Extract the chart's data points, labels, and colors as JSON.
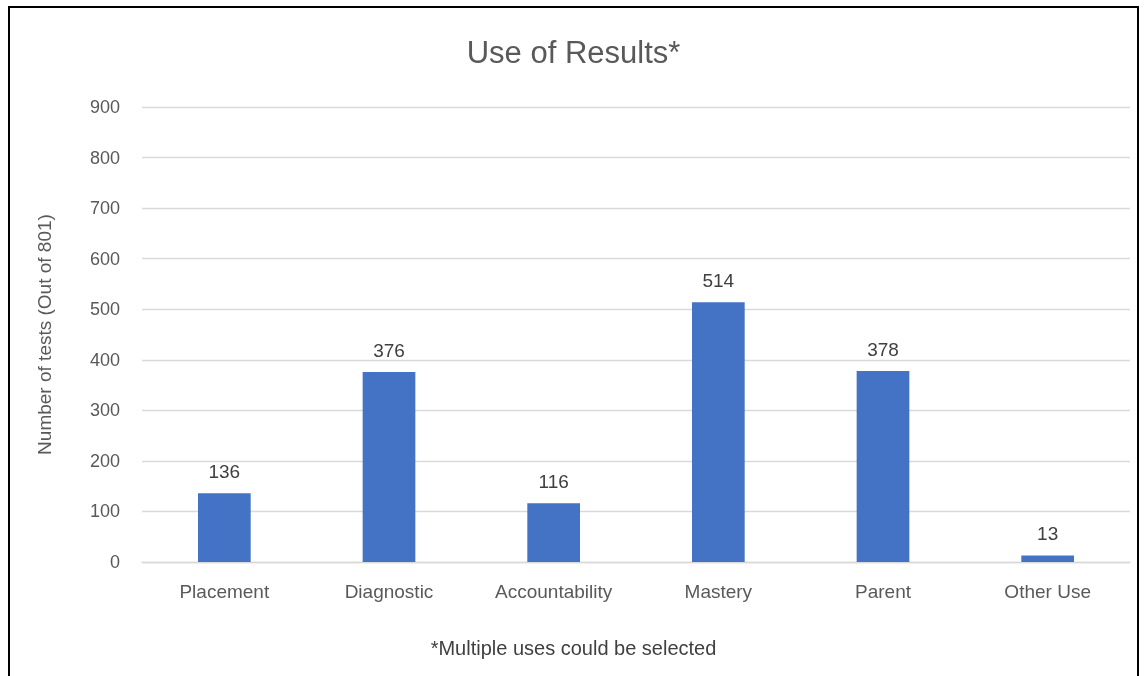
{
  "chart_data": {
    "type": "bar",
    "title": "Use of Results*",
    "ylabel": "Number of tests (Out of 801)",
    "annotations": [
      "*Multiple uses could be selected"
    ],
    "categories": [
      "Placement",
      "Diagnostic",
      "Accountability",
      "Mastery",
      "Parent",
      "Other Use"
    ],
    "values": [
      136,
      376,
      116,
      514,
      378,
      13
    ],
    "color": "#4472c4",
    "ylim": [
      0,
      900
    ],
    "yticks": [
      0,
      100,
      200,
      300,
      400,
      500,
      600,
      700,
      800,
      900
    ],
    "grid": "y",
    "data_labels": true
  }
}
